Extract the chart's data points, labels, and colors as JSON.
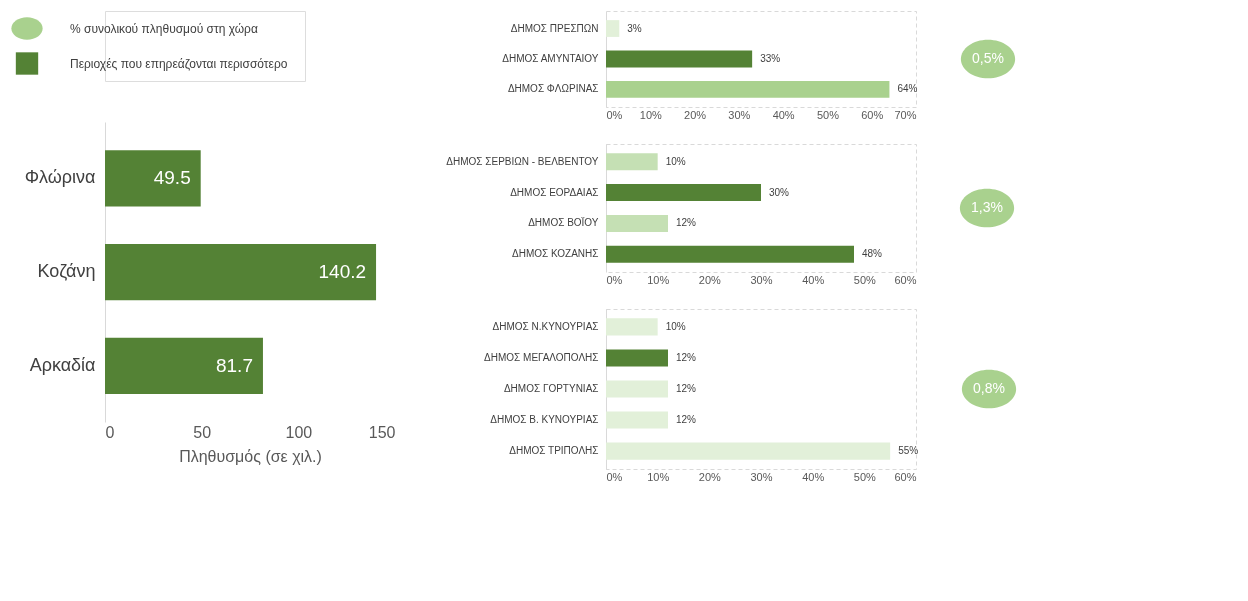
{
  "chart_data": [
    {
      "type": "bar",
      "orientation": "horizontal",
      "categories": [
        "Φλώρινα",
        "Κοζάνη",
        "Αρκαδία"
      ],
      "series": [
        {
          "name": "Περιοχές που επηρεάζονται περισσότερο",
          "color": "#548235",
          "values": [
            49.5,
            140.2,
            81.7
          ]
        }
      ],
      "xlim": [
        0,
        150
      ],
      "xticks": [
        0,
        50,
        100,
        150
      ],
      "xlabel": "Πληθυσμός (σε χιλ.)",
      "data_labels": true,
      "legend": "top left"
    },
    {
      "type": "bar",
      "orientation": "horizontal",
      "categories": [
        "ΔΗΜΟΣ ΠΡΕΣΠΩΝ",
        "ΔΗΜΟΣ ΑΜΥΝΤΑΙΟΥ",
        "ΔΗΜΟΣ ΦΛΩΡΙΝΑΣ"
      ],
      "values": [
        3,
        33,
        64
      ],
      "colors": [
        "#e2f0d9",
        "#548235",
        "#a9d18e"
      ],
      "value_labels": [
        "3%",
        "33%",
        "64%"
      ],
      "xlim": [
        0,
        70
      ],
      "xticks": [
        {
          "value": 0,
          "label": "0%"
        },
        {
          "value": 10,
          "label": "10%"
        },
        {
          "value": 20,
          "label": "20%"
        },
        {
          "value": 30,
          "label": "30%"
        },
        {
          "value": 40,
          "label": "40%"
        },
        {
          "value": 50,
          "label": "50%"
        },
        {
          "value": 60,
          "label": "60%"
        },
        {
          "value": 70,
          "label": "70%"
        }
      ]
    },
    {
      "type": "bar",
      "orientation": "horizontal",
      "categories": [
        "ΔΗΜΟΣ ΣΕΡΒΙΩΝ - ΒΕΛΒΕΝΤΟΥ",
        "ΔΗΜΟΣ ΕΟΡΔΑΙΑΣ",
        "ΔΗΜΟΣ ΒΟΪΟΥ",
        "ΔΗΜΟΣ ΚΟΖΑΝΗΣ"
      ],
      "values": [
        10,
        30,
        12,
        48
      ],
      "colors": [
        "#c5e0b4",
        "#548235",
        "#c5e0b4",
        "#548235"
      ],
      "value_labels": [
        "10%",
        "30%",
        "12%",
        "48%"
      ],
      "xlim": [
        0,
        60
      ],
      "xticks": [
        {
          "value": 0,
          "label": "0%"
        },
        {
          "value": 10,
          "label": "10%"
        },
        {
          "value": 20,
          "label": "20%"
        },
        {
          "value": 30,
          "label": "30%"
        },
        {
          "value": 40,
          "label": "40%"
        },
        {
          "value": 50,
          "label": "50%"
        },
        {
          "value": 60,
          "label": "60%"
        }
      ]
    },
    {
      "type": "bar",
      "orientation": "horizontal",
      "categories": [
        "ΔΗΜΟΣ Ν.ΚΥΝΟΥΡΙΑΣ",
        "ΔΗΜΟΣ ΜΕΓΑΛΟΠΟΛΗΣ",
        "ΔΗΜΟΣ ΓΟΡΤΥΝΙΑΣ",
        "ΔΗΜΟΣ Β. ΚΥΝΟΥΡΙΑΣ",
        "ΔΗΜΟΣ ΤΡΙΠΟΛΗΣ"
      ],
      "values": [
        10,
        12,
        12,
        12,
        55
      ],
      "colors": [
        "#e2f0d9",
        "#548235",
        "#e2f0d9",
        "#e2f0d9",
        "#e2f0d9"
      ],
      "value_labels": [
        "10%",
        "12%",
        "12%",
        "12%",
        "55%"
      ],
      "xlim": [
        0,
        60
      ],
      "xticks": [
        {
          "value": 0,
          "label": "0%"
        },
        {
          "value": 10,
          "label": "10%"
        },
        {
          "value": 20,
          "label": "20%"
        },
        {
          "value": 30,
          "label": "30%"
        },
        {
          "value": 40,
          "label": "40%"
        },
        {
          "value": 50,
          "label": "50%"
        },
        {
          "value": 60,
          "label": "60%"
        }
      ]
    },
    {
      "type": "other",
      "categories": [
        null,
        null,
        null
      ],
      "series": [
        {
          "name": "% συνολικού πληθυσμού στη χώρα",
          "color": "#a9d18e",
          "values": [
            0.5,
            1.3,
            0.8
          ],
          "value_labels": [
            "0,5%",
            "1,3%",
            "0,8%"
          ]
        }
      ],
      "legend": "top left"
    }
  ]
}
